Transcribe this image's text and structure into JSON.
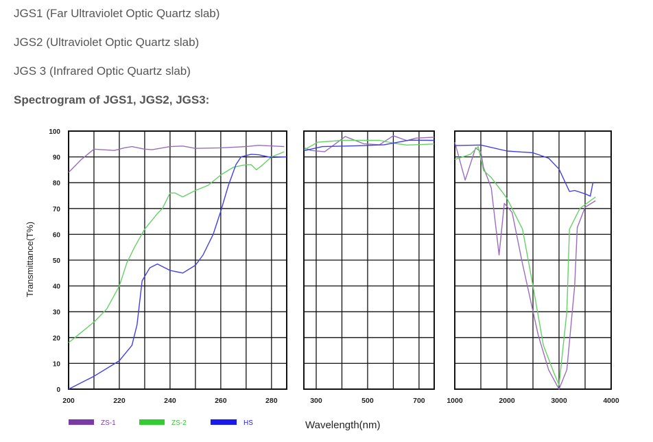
{
  "text_lines": [
    "JGS1 (Far Ultraviolet Optic Quartz slab)",
    "JGS2 (Ultraviolet Optic Quartz slab)",
    "JGS 3 (Infrared Optic Quartz slab)"
  ],
  "heading": "Spectrogram of JGS1, JGS2, JGS3:",
  "chart_data": {
    "type": "line",
    "ylabel": "Transmittance(T%)",
    "xlabel": "Wavelength(nm)",
    "ylim": [
      0,
      100
    ],
    "yticks": [
      0,
      10,
      20,
      30,
      40,
      50,
      60,
      70,
      80,
      90,
      100
    ],
    "grid": true,
    "legend_placement": "bottom-left",
    "legend": [
      {
        "name": "ZS-1",
        "color": "#7a3aa8"
      },
      {
        "name": "ZS-2",
        "color": "#33cc33"
      },
      {
        "name": "HS",
        "color": "#1a1aee"
      }
    ],
    "series_colors": {
      "ZS-1": "#9a6cc0",
      "ZS-2": "#66d066",
      "HS": "#3f3fe6"
    },
    "panels": [
      {
        "xlim": [
          200,
          286
        ],
        "xticks": [
          "200",
          "220",
          "240",
          "260",
          "280"
        ],
        "xtick_values": [
          200,
          220,
          240,
          260,
          280
        ],
        "series": {
          "ZS-1": [
            [
              200,
              84
            ],
            [
              205,
              89
            ],
            [
              210,
              93
            ],
            [
              218,
              92.5
            ],
            [
              222,
              93.5
            ],
            [
              225,
              94
            ],
            [
              230,
              93
            ],
            [
              233,
              92.8
            ],
            [
              240,
              94
            ],
            [
              245,
              94.2
            ],
            [
              250,
              93.3
            ],
            [
              260,
              93.5
            ],
            [
              270,
              94
            ],
            [
              275,
              94.5
            ],
            [
              285,
              94
            ]
          ],
          "ZS-2": [
            [
              200,
              18
            ],
            [
              205,
              22
            ],
            [
              210,
              26
            ],
            [
              215,
              31
            ],
            [
              220,
              40
            ],
            [
              223,
              49
            ],
            [
              226,
              55
            ],
            [
              230,
              62
            ],
            [
              235,
              68
            ],
            [
              237,
              70
            ],
            [
              240,
              76
            ],
            [
              242,
              76
            ],
            [
              245,
              74.5
            ],
            [
              250,
              77
            ],
            [
              255,
              79
            ],
            [
              260,
              83
            ],
            [
              265,
              86
            ],
            [
              270,
              87
            ],
            [
              272,
              87
            ],
            [
              274,
              85
            ],
            [
              276,
              86.5
            ],
            [
              280,
              90
            ],
            [
              285,
              92
            ]
          ],
          "HS": [
            [
              200,
              0
            ],
            [
              210,
              5
            ],
            [
              220,
              11
            ],
            [
              225,
              17
            ],
            [
              227,
              25
            ],
            [
              229,
              42
            ],
            [
              232,
              47
            ],
            [
              235,
              48.5
            ],
            [
              240,
              46
            ],
            [
              245,
              45
            ],
            [
              250,
              48
            ],
            [
              253,
              52
            ],
            [
              257,
              60
            ],
            [
              260,
              69
            ],
            [
              263,
              79
            ],
            [
              266,
              87
            ],
            [
              268,
              90
            ],
            [
              272,
              91
            ],
            [
              275,
              90.8
            ],
            [
              280,
              89.8
            ],
            [
              286,
              90
            ]
          ]
        }
      },
      {
        "xlim": [
          252,
          759
        ],
        "xticks": [
          "300",
          "500",
          "700"
        ],
        "xtick_values": [
          300,
          500,
          700
        ],
        "series": {
          "ZS-1": [
            [
              253,
              93.5
            ],
            [
              280,
              92.5
            ],
            [
              333,
              92
            ],
            [
              413,
              97.9
            ],
            [
              484,
              95.1
            ],
            [
              546,
              94.7
            ],
            [
              600,
              98.2
            ],
            [
              653,
              96.3
            ],
            [
              688,
              97.3
            ],
            [
              759,
              97.6
            ]
          ],
          "ZS-2": [
            [
              253,
              92.7
            ],
            [
              306,
              95.7
            ],
            [
              404,
              96.4
            ],
            [
              546,
              96.4
            ],
            [
              608,
              95.2
            ],
            [
              653,
              94.6
            ],
            [
              759,
              95
            ]
          ],
          "HS": [
            [
              253,
              92.4
            ],
            [
              324,
              94
            ],
            [
              457,
              94.3
            ],
            [
              564,
              94.7
            ],
            [
              662,
              96.5
            ],
            [
              759,
              96.4
            ]
          ]
        }
      },
      {
        "xlim": [
          1000,
          4000
        ],
        "xticks": [
          "1000",
          "2000",
          "3000",
          "4000"
        ],
        "xtick_values": [
          1000,
          2000,
          3000,
          4000
        ],
        "series": {
          "ZS-1": [
            [
              1000,
              95.7
            ],
            [
              1200,
              81
            ],
            [
              1400,
              93.5
            ],
            [
              1500,
              92
            ],
            [
              1550,
              86
            ],
            [
              1700,
              78
            ],
            [
              1850,
              52
            ],
            [
              1950,
              72
            ],
            [
              2100,
              68.5
            ],
            [
              2300,
              48.5
            ],
            [
              2600,
              21
            ],
            [
              2800,
              7.5
            ],
            [
              3000,
              0
            ],
            [
              3150,
              7.5
            ],
            [
              3300,
              40
            ],
            [
              3350,
              62.6
            ],
            [
              3500,
              70.5
            ],
            [
              3700,
              73
            ]
          ],
          "ZS-2": [
            [
              1000,
              89
            ],
            [
              1300,
              91
            ],
            [
              1450,
              94
            ],
            [
              1550,
              84.8
            ],
            [
              1700,
              82
            ],
            [
              2000,
              74
            ],
            [
              2300,
              62
            ],
            [
              2500,
              40
            ],
            [
              2700,
              17
            ],
            [
              2900,
              6.4
            ],
            [
              3000,
              1.6
            ],
            [
              3150,
              30
            ],
            [
              3200,
              62
            ],
            [
              3400,
              70
            ],
            [
              3700,
              74.5
            ]
          ],
          "HS": [
            [
              1000,
              94.4
            ],
            [
              1500,
              94.6
            ],
            [
              2000,
              92.3
            ],
            [
              2500,
              91.6
            ],
            [
              2800,
              89.5
            ],
            [
              3000,
              85.3
            ],
            [
              3200,
              76.6
            ],
            [
              3300,
              77
            ],
            [
              3500,
              75.7
            ],
            [
              3600,
              74.8
            ],
            [
              3650,
              80
            ]
          ]
        }
      }
    ]
  }
}
